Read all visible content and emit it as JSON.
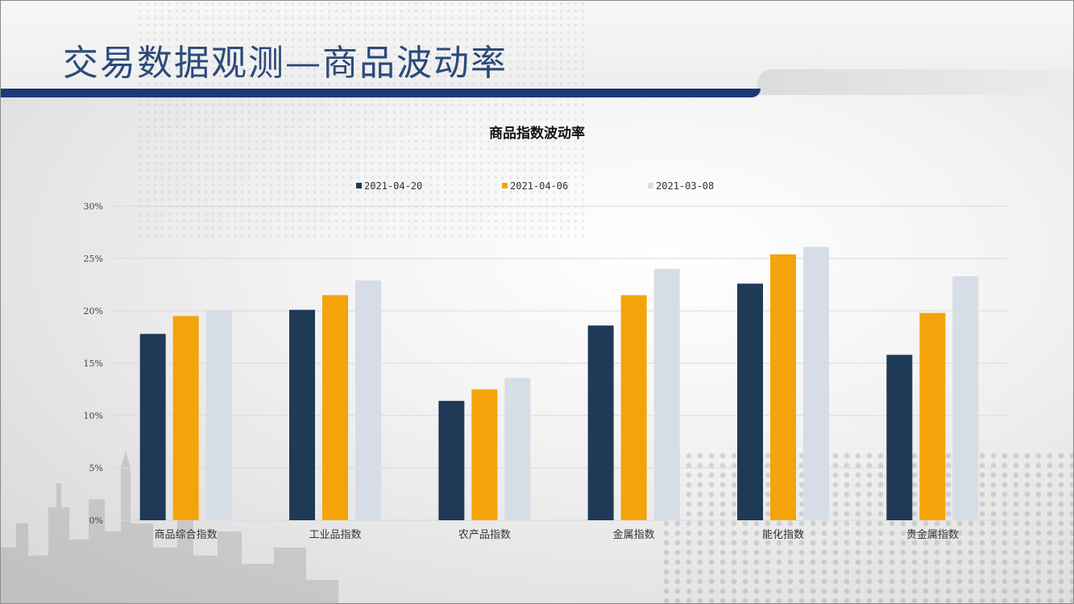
{
  "page": {
    "title": "交易数据观测—商品波动率"
  },
  "chart_data": {
    "type": "bar",
    "title": "商品指数波动率",
    "categories": [
      "商品综合指数",
      "工业品指数",
      "农产品指数",
      "金属指数",
      "能化指数",
      "贵金属指数"
    ],
    "series": [
      {
        "name": "2021-04-20",
        "color": "#1f3a56",
        "values": [
          17.8,
          20.1,
          11.4,
          18.6,
          22.6,
          15.8
        ]
      },
      {
        "name": "2021-04-06",
        "color": "#f5a30a",
        "values": [
          19.5,
          21.5,
          12.5,
          21.5,
          25.4,
          19.8
        ]
      },
      {
        "name": "2021-03-08",
        "color": "#d6dde6",
        "values": [
          20.1,
          22.9,
          13.6,
          24.0,
          26.1,
          23.3
        ]
      }
    ],
    "y_ticks": [
      "0%",
      "5%",
      "10%",
      "15%",
      "20%",
      "25%",
      "30%"
    ],
    "ylim": [
      0,
      30
    ],
    "legend_position": "top",
    "grid": true
  }
}
